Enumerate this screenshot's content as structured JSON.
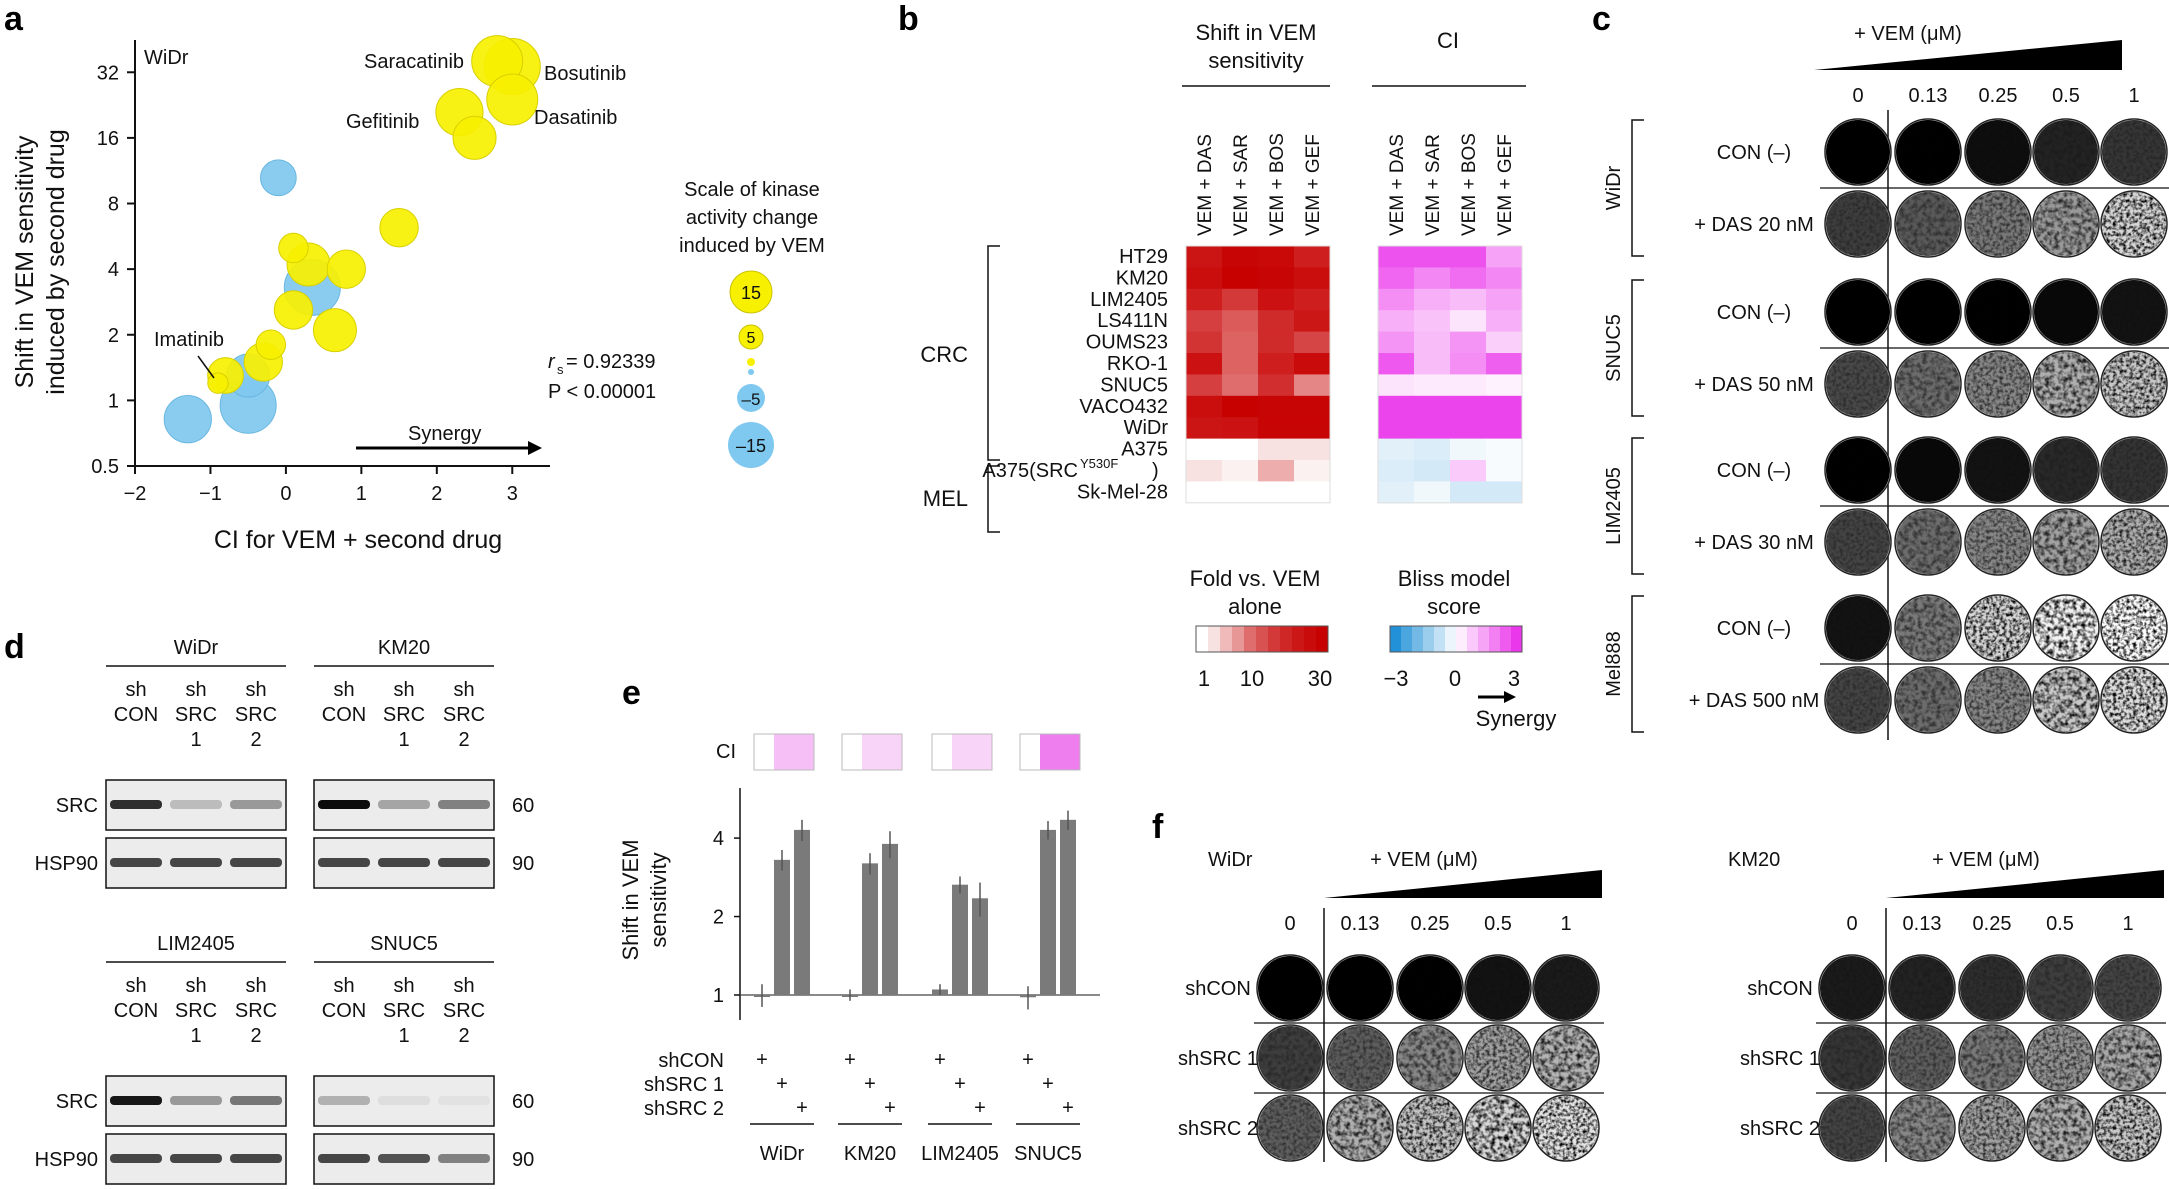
{
  "panels": {
    "a": "a",
    "b": "b",
    "c": "c",
    "d": "d",
    "e": "e",
    "f": "f"
  },
  "panel_a": {
    "cell_line": "WiDr",
    "ylabel_1": "Shift in VEM sensitivity",
    "ylabel_2": "induced by second drug",
    "xlabel": "CI for VEM + second drug",
    "stat_r": "r",
    "stat_r_sub": "s",
    "stat_r_val": " = 0.92339",
    "stat_p": "P < 0.00001",
    "synergy": "Synergy",
    "scale_title": [
      "Scale of kinase",
      "activity change",
      "induced by VEM"
    ],
    "scale_labels": [
      "15",
      "5",
      "–5",
      "–15"
    ],
    "colors": {
      "positive": "#f7f000",
      "negative": "#7fc8ef"
    },
    "drug_labels": [
      "Saracatinib",
      "Bosutinib",
      "Gefitinib",
      "Dasatinib",
      "Imatinib"
    ]
  },
  "chart_data": {
    "type": "scatter",
    "xlabel": "CI for VEM + second drug",
    "ylabel": "Shift in VEM sensitivity induced by second drug",
    "xlim": [
      -2,
      3.5
    ],
    "ylim": [
      0.5,
      45
    ],
    "yscale": "log2",
    "x_ticks": [
      "−2",
      "−1",
      "0",
      "1",
      "2",
      "3"
    ],
    "y_ticks": [
      "0.5",
      "1",
      "2",
      "4",
      "8",
      "16",
      "32"
    ],
    "points": [
      {
        "x": 2.8,
        "y": 36,
        "size": 12,
        "sign": "pos"
      },
      {
        "x": 3.0,
        "y": 34,
        "size": 15,
        "sign": "pos"
      },
      {
        "x": 3.0,
        "y": 24,
        "size": 12,
        "sign": "pos"
      },
      {
        "x": 2.3,
        "y": 21,
        "size": 10,
        "sign": "pos"
      },
      {
        "x": 2.5,
        "y": 16,
        "size": 8,
        "sign": "pos"
      },
      {
        "x": 1.5,
        "y": 6.2,
        "size": 6,
        "sign": "pos"
      },
      {
        "x": -0.1,
        "y": 10.5,
        "size": -5,
        "sign": "neg"
      },
      {
        "x": 0.3,
        "y": 4.2,
        "size": 8,
        "sign": "pos"
      },
      {
        "x": 0.8,
        "y": 4.0,
        "size": 6,
        "sign": "pos"
      },
      {
        "x": 0.1,
        "y": 5.0,
        "size": 3,
        "sign": "pos"
      },
      {
        "x": 0.35,
        "y": 3.3,
        "size": -15,
        "sign": "neg"
      },
      {
        "x": 0.1,
        "y": 2.6,
        "size": 6,
        "sign": "pos"
      },
      {
        "x": 0.65,
        "y": 2.1,
        "size": 8,
        "sign": "pos"
      },
      {
        "x": -0.2,
        "y": 1.8,
        "size": 3,
        "sign": "pos"
      },
      {
        "x": -0.3,
        "y": 1.5,
        "size": 6,
        "sign": "pos"
      },
      {
        "x": -0.8,
        "y": 1.3,
        "size": 5,
        "sign": "pos"
      },
      {
        "x": -0.5,
        "y": 1.3,
        "size": -8,
        "sign": "neg"
      },
      {
        "x": -0.5,
        "y": 0.95,
        "size": -15,
        "sign": "neg"
      },
      {
        "x": -1.3,
        "y": 0.82,
        "size": -10,
        "sign": "neg"
      },
      {
        "x": -0.9,
        "y": 1.2,
        "size": 1,
        "sign": "pos"
      }
    ]
  },
  "panel_b": {
    "col_header_1": [
      "Shift in VEM",
      "sensitivity"
    ],
    "col_header_2": "CI",
    "columns": [
      "VEM + DAS",
      "VEM + SAR",
      "VEM + BOS",
      "VEM + GEF"
    ],
    "rows": [
      "HT29",
      "KM20",
      "LIM2405",
      "LS411N",
      "OUMS23",
      "RKO-1",
      "SNUC5",
      "VACO432",
      "WiDr",
      "A375",
      "A375(SRC",
      "Sk-Mel-28"
    ],
    "row_superscript": "Y530F",
    "row_suffix": ")",
    "group_crc": "CRC",
    "group_mel": "MEL",
    "fold": [
      [
        23,
        28,
        27,
        20
      ],
      [
        25,
        30,
        28,
        25
      ],
      [
        20,
        14,
        24,
        20
      ],
      [
        13,
        9,
        17,
        22
      ],
      [
        15,
        8,
        17,
        12
      ],
      [
        24,
        8,
        20,
        26
      ],
      [
        13,
        7,
        16,
        5
      ],
      [
        25,
        30,
        28,
        28
      ],
      [
        23,
        24,
        28,
        28
      ],
      [
        1,
        1,
        1.5,
        1.5
      ],
      [
        1.5,
        1.2,
        3,
        1.2
      ],
      [
        1,
        1,
        1,
        1
      ]
    ],
    "bliss": [
      [
        2.6,
        2.6,
        2.6,
        1.4
      ],
      [
        2.3,
        1.8,
        2.2,
        1.8
      ],
      [
        1.7,
        1.2,
        1.0,
        1.4
      ],
      [
        1.2,
        0.9,
        0.4,
        1.2
      ],
      [
        1.6,
        1.0,
        1.6,
        0.7
      ],
      [
        2.5,
        1.0,
        1.7,
        2.4
      ],
      [
        0.4,
        0.3,
        0.3,
        0.2
      ],
      [
        2.8,
        2.8,
        2.8,
        2.8
      ],
      [
        2.8,
        2.8,
        2.8,
        2.8
      ],
      [
        -0.4,
        -0.5,
        -0.2,
        -0.1
      ],
      [
        -0.5,
        -0.6,
        0.8,
        -0.1
      ],
      [
        -0.4,
        -0.2,
        -0.6,
        -0.6
      ]
    ],
    "legend_fold_title": [
      "Fold vs. VEM",
      "alone"
    ],
    "legend_fold_ticks": [
      "1",
      "10",
      "30"
    ],
    "legend_bliss_title": [
      "Bliss model",
      "score"
    ],
    "legend_bliss_ticks": [
      "−3",
      "0",
      "3"
    ],
    "synergy": "Synergy"
  },
  "panel_c": {
    "header": "+ VEM (μM)",
    "doses": [
      "0",
      "0.13",
      "0.25",
      "0.5",
      "1"
    ],
    "groups": [
      {
        "name": "WiDr",
        "rows": [
          "CON (–)",
          "+ DAS 20 nM"
        ]
      },
      {
        "name": "SNUC5",
        "rows": [
          "CON (–)",
          "+ DAS 50 nM"
        ]
      },
      {
        "name": "LIM2405",
        "rows": [
          "CON (–)",
          "+ DAS 30 nM"
        ]
      },
      {
        "name": "Mel888",
        "rows": [
          "CON (–)",
          "+ DAS 500 nM"
        ]
      }
    ],
    "density": [
      [
        1,
        0.95,
        0.9,
        0.82,
        0.75
      ],
      [
        0.72,
        0.62,
        0.5,
        0.38,
        0.15
      ],
      [
        1,
        0.97,
        0.95,
        0.92,
        0.88
      ],
      [
        0.68,
        0.55,
        0.45,
        0.3,
        0.2
      ],
      [
        0.95,
        0.92,
        0.88,
        0.8,
        0.76
      ],
      [
        0.7,
        0.55,
        0.45,
        0.35,
        0.3
      ],
      [
        0.88,
        0.5,
        0.15,
        0.05,
        0.02
      ],
      [
        0.7,
        0.55,
        0.45,
        0.2,
        0.12
      ]
    ]
  },
  "panel_d": {
    "blots": [
      {
        "name": "WiDr",
        "lanes": [
          [
            "sh",
            "CON"
          ],
          [
            "sh",
            "SRC",
            "1"
          ],
          [
            "sh",
            "SRC",
            "2"
          ]
        ],
        "src": [
          0.8,
          0.2,
          0.35
        ],
        "hsp": [
          0.7,
          0.7,
          0.7
        ]
      },
      {
        "name": "KM20",
        "lanes": [
          [
            "sh",
            "CON"
          ],
          [
            "sh",
            "SRC",
            "1"
          ],
          [
            "sh",
            "SRC",
            "2"
          ]
        ],
        "src": [
          0.95,
          0.3,
          0.45
        ],
        "hsp": [
          0.7,
          0.7,
          0.7
        ]
      },
      {
        "name": "LIM2405",
        "lanes": [
          [
            "sh",
            "CON"
          ],
          [
            "sh",
            "SRC",
            "1"
          ],
          [
            "sh",
            "SRC",
            "2"
          ]
        ],
        "src": [
          0.9,
          0.35,
          0.5
        ],
        "hsp": [
          0.7,
          0.7,
          0.7
        ]
      },
      {
        "name": "SNUC5",
        "lanes": [
          [
            "sh",
            "CON"
          ],
          [
            "sh",
            "SRC",
            "1"
          ],
          [
            "sh",
            "SRC",
            "2"
          ]
        ],
        "src": [
          0.25,
          0.06,
          0.04
        ],
        "hsp": [
          0.7,
          0.65,
          0.45
        ]
      }
    ],
    "row_labels": [
      "SRC",
      "HSP90"
    ],
    "mw": [
      "60",
      "90"
    ]
  },
  "panel_e": {
    "ci_label": "CI",
    "ylabel": [
      "Shift in VEM",
      "sensitivity"
    ],
    "y_ticks": [
      "1",
      "2",
      "4"
    ],
    "groups": [
      "WiDr",
      "KM20",
      "LIM2405",
      "SNUC5"
    ],
    "values": [
      [
        1.0,
        3.3,
        4.3
      ],
      [
        1.0,
        3.2,
        3.8
      ],
      [
        1.05,
        2.65,
        2.35
      ],
      [
        0.98,
        4.3,
        4.7
      ]
    ],
    "errors": [
      [
        0.1,
        0.3,
        0.4
      ],
      [
        0.05,
        0.3,
        0.45
      ],
      [
        0.05,
        0.2,
        0.35
      ],
      [
        0.1,
        0.35,
        0.4
      ]
    ],
    "ci_values": [
      [
        0,
        0.15,
        0.15
      ],
      [
        0,
        0.1,
        0.1
      ],
      [
        0,
        0.1,
        0.1
      ],
      [
        0,
        0.3,
        0.3
      ]
    ],
    "treat_labels": [
      "shCON",
      "shSRC  1",
      "shSRC  2"
    ],
    "plus": "+"
  },
  "panel_f": {
    "header": "+ VEM (μM)",
    "doses": [
      "0",
      "0.13",
      "0.25",
      "0.5",
      "1"
    ],
    "groups": [
      {
        "name": "WiDr",
        "rows": [
          "shCON",
          "shSRC 1",
          "shSRC 2"
        ],
        "density": [
          [
            1,
            0.98,
            0.95,
            0.88,
            0.85
          ],
          [
            0.72,
            0.6,
            0.45,
            0.35,
            0.28
          ],
          [
            0.6,
            0.3,
            0.22,
            0.15,
            0.1
          ]
        ]
      },
      {
        "name": "KM20",
        "rows": [
          "shCON",
          "shSRC 1",
          "shSRC 2"
        ],
        "density": [
          [
            0.85,
            0.82,
            0.78,
            0.72,
            0.7
          ],
          [
            0.75,
            0.6,
            0.5,
            0.4,
            0.32
          ],
          [
            0.7,
            0.45,
            0.35,
            0.3,
            0.2
          ]
        ]
      }
    ]
  }
}
